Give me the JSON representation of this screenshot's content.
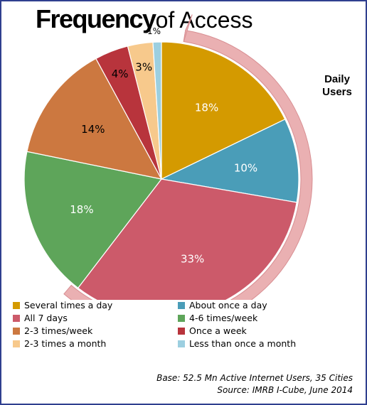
{
  "title": {
    "bold": "Frequency",
    "rest": "of Access"
  },
  "callout": "Daily Users",
  "chart_data": {
    "type": "pie",
    "slices": [
      {
        "label": "Several times a day",
        "value": 18,
        "value_label": "18%",
        "color": "#d49a00",
        "group": "daily"
      },
      {
        "label": "About once a day",
        "value": 10,
        "value_label": "10%",
        "color": "#4a9db8",
        "group": "daily"
      },
      {
        "label": "All 7 days",
        "value": 33,
        "value_label": "33%",
        "color": "#cc5a6a",
        "group": "daily"
      },
      {
        "label": "4-6 times/week",
        "value": 18,
        "value_label": "18%",
        "color": "#5ea55a"
      },
      {
        "label": "2-3 times/week",
        "value": 14,
        "value_label": "14%",
        "color": "#cc7840"
      },
      {
        "label": "Once a week",
        "value": 4,
        "value_label": "4%",
        "color": "#b8343c"
      },
      {
        "label": "2-3 times a month",
        "value": 3,
        "value_label": "3%",
        "color": "#f7c98c"
      },
      {
        "label": "Less than once a month",
        "value": 1,
        "value_label": "1%",
        "color": "#9ccfe0"
      }
    ],
    "legend_placement": "bottom"
  },
  "footer": {
    "base": "Base: 52.5 Mn Active Internet Users, 35 Cities",
    "source": "Source: IMRB I-Cube, June  2014"
  }
}
